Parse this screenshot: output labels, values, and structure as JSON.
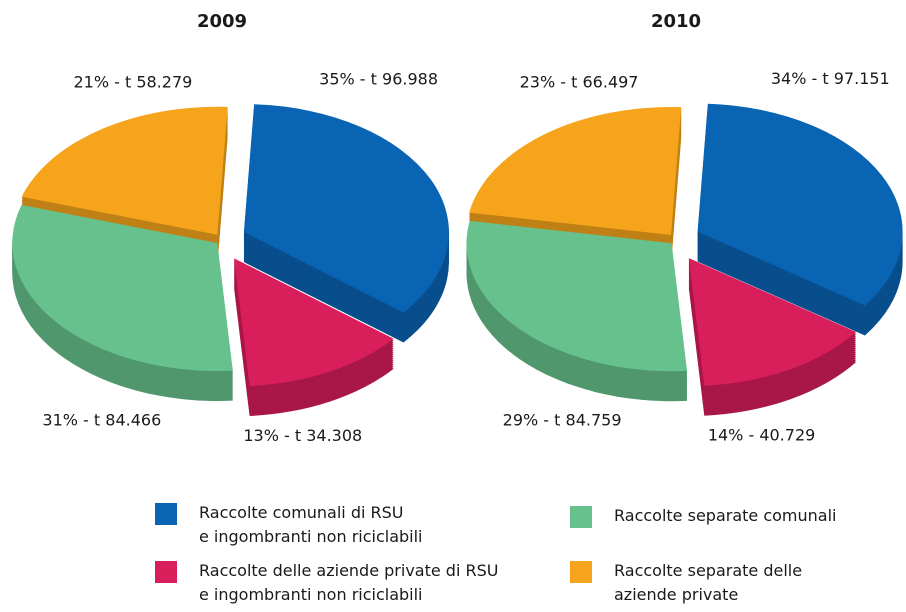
{
  "legend": [
    {
      "name": "Raccolte comunali di RSU\ne ingombranti non riciclabili",
      "color": "#0a64b4"
    },
    {
      "name": "Raccolte delle aziende private di RSU\ne ingombranti non riciclabili",
      "color": "#d81e5b"
    },
    {
      "name": "Raccolte separate comunali",
      "color": "#66c18c"
    },
    {
      "name": "Raccolte separate delle\naziende private",
      "color": "#f5a41c"
    }
  ],
  "chart_data": [
    {
      "type": "pie",
      "title": "2009",
      "values": [
        35,
        13,
        31,
        21
      ],
      "value_labels": [
        "35% - t 96.988",
        "13% - t 34.308",
        "31% - t 84.466",
        "21% - t 58.279"
      ]
    },
    {
      "type": "pie",
      "title": "2010",
      "values": [
        34,
        14,
        29,
        23
      ],
      "value_labels": [
        "34% - t 97.151",
        "14% - 40.729",
        "29% - t 84.759",
        "23% - t 66.497"
      ]
    }
  ]
}
